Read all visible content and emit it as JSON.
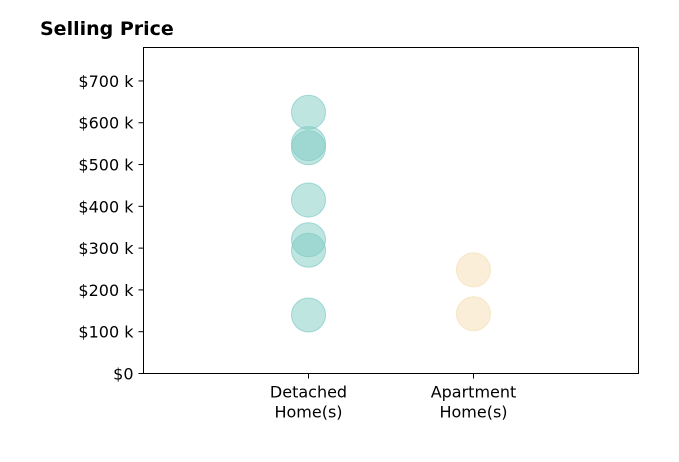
{
  "chart_data": {
    "type": "scatter",
    "title": "Selling Price",
    "xlabel": "",
    "ylabel": "",
    "grid": false,
    "ylim": [
      0,
      780000
    ],
    "yticks": [
      {
        "value": 0,
        "label": "$0"
      },
      {
        "value": 100000,
        "label": "$100 k"
      },
      {
        "value": 200000,
        "label": "$200 k"
      },
      {
        "value": 300000,
        "label": "$300 k"
      },
      {
        "value": 400000,
        "label": "$400 k"
      },
      {
        "value": 500000,
        "label": "$500 k"
      },
      {
        "value": 600000,
        "label": "$600 k"
      },
      {
        "value": 700000,
        "label": "$700 k"
      }
    ],
    "xlim": [
      -1,
      2
    ],
    "categories": [
      {
        "lines": [
          "Detached",
          "Home(s)"
        ],
        "position": 0
      },
      {
        "lines": [
          "Apartment",
          "Home(s)"
        ],
        "position": 1
      }
    ],
    "series": [
      {
        "category": 0,
        "color": "#80cbc4",
        "values": [
          625000,
          550000,
          540000,
          415000,
          320000,
          295000,
          140000
        ]
      },
      {
        "category": 1,
        "color": "#f5deb3",
        "values": [
          248000,
          143000
        ]
      }
    ]
  }
}
